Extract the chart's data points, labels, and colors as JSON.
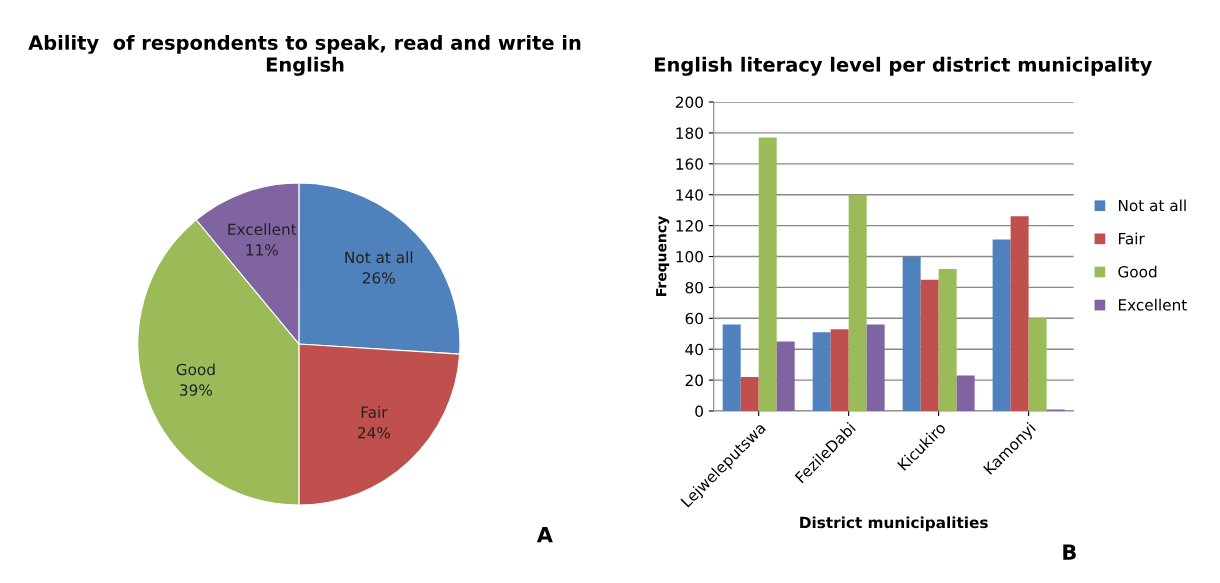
{
  "chart_data": [
    {
      "type": "pie",
      "title": "Ability  of respondents to speak, read and write in English",
      "categories": [
        "Not at all",
        "Fair",
        "Good",
        "Excellent"
      ],
      "values": [
        26,
        24,
        39,
        11
      ],
      "value_labels": [
        "26%",
        "24%",
        "39%",
        "11%"
      ],
      "colors": [
        "#4f81bd",
        "#c0504d",
        "#9bbb59",
        "#8064a2"
      ],
      "legend": false,
      "annotations": [
        "A"
      ]
    },
    {
      "type": "bar",
      "title": "English literacy level per district municipality",
      "xlabel": "District municipalities",
      "ylabel": "Frequency",
      "categories": [
        "Lejweleputswa",
        "FezileDabi",
        "Kicukiro",
        "Kamonyi"
      ],
      "series": [
        {
          "name": "Not at all",
          "color": "#4f81bd",
          "values": [
            56,
            51,
            100,
            111
          ]
        },
        {
          "name": "Fair",
          "color": "#c0504d",
          "values": [
            22,
            53,
            85,
            126
          ]
        },
        {
          "name": "Good",
          "color": "#9bbb59",
          "values": [
            177,
            140,
            92,
            60
          ]
        },
        {
          "name": "Excellent",
          "color": "#8064a2",
          "values": [
            45,
            56,
            23,
            1
          ]
        }
      ],
      "ylim": [
        0,
        200
      ],
      "yticks": [
        0,
        20,
        40,
        60,
        80,
        100,
        120,
        140,
        160,
        180,
        200
      ],
      "grid": "y",
      "legend": "right",
      "annotations": [
        "B"
      ]
    }
  ]
}
